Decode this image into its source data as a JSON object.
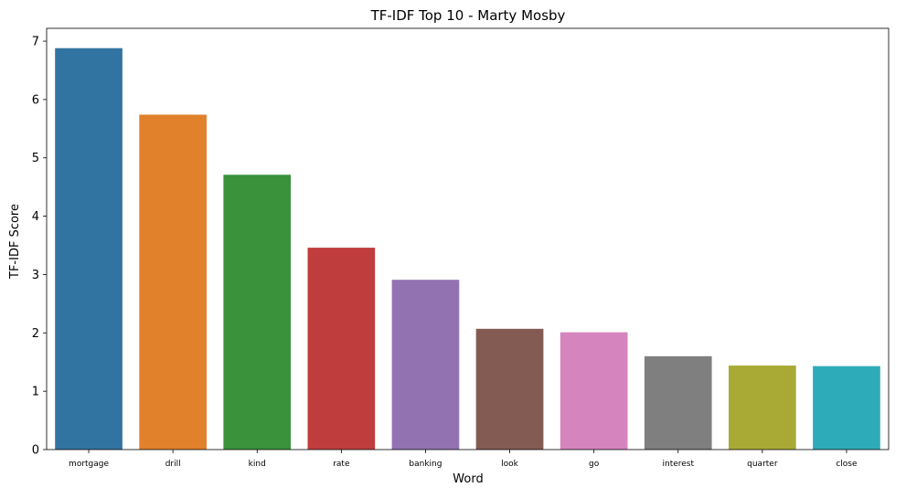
{
  "chart_data": {
    "type": "bar",
    "title": "TF-IDF Top 10 - Marty Mosby",
    "xlabel": "Word",
    "ylabel": "TF-IDF Score",
    "categories": [
      "mortgage",
      "drill",
      "kind",
      "rate",
      "banking",
      "look",
      "go",
      "interest",
      "quarter",
      "close"
    ],
    "values": [
      6.88,
      5.74,
      4.71,
      3.46,
      2.91,
      2.07,
      2.01,
      1.6,
      1.44,
      1.43
    ],
    "colors": [
      "#3274a1",
      "#e1812c",
      "#3a923a",
      "#c03d3e",
      "#9372b2",
      "#845b53",
      "#d684bd",
      "#7f7f7f",
      "#a9aa35",
      "#2eabb8"
    ],
    "ylim": [
      0,
      7.22
    ],
    "yticks": [
      "0",
      "1",
      "2",
      "3",
      "4",
      "5",
      "6",
      "7"
    ],
    "grid": false,
    "legend": "none"
  }
}
